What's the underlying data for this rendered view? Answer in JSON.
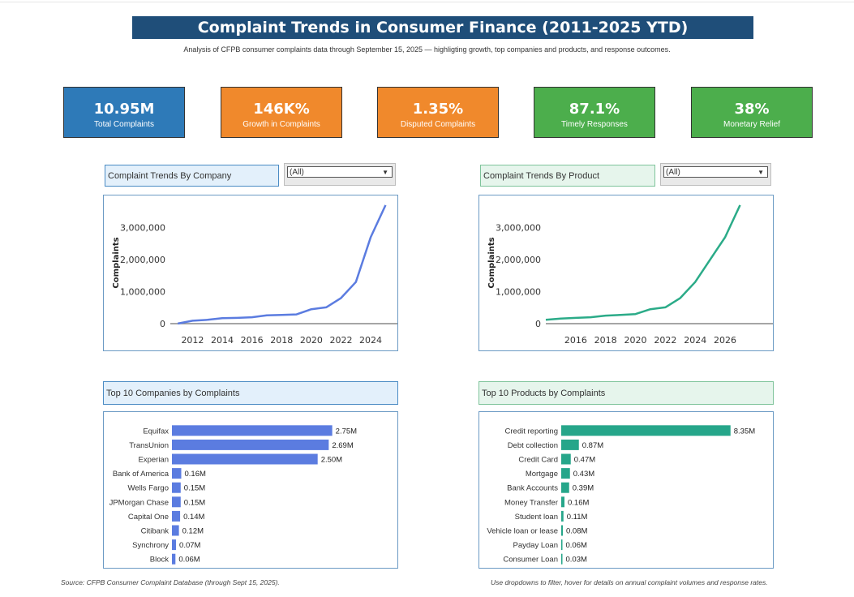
{
  "header": {
    "title": "Complaint Trends in Consumer Finance (2011-2025 YTD)",
    "subtitle": "Analysis of CFPB consumer complaints data through September 15, 2025 — highligting growth, top companies and products, and response outcomes."
  },
  "kpis": [
    {
      "value": "10.95M",
      "label": "Total Complaints",
      "color": "#2e7ab8"
    },
    {
      "value": "146K%",
      "label": "Growth in Complaints",
      "color": "#f0892c"
    },
    {
      "value": "1.35%",
      "label": "Disputed Complaints",
      "color": "#f0892c"
    },
    {
      "value": "87.1%",
      "label": "Timely Responses",
      "color": "#4cae4c"
    },
    {
      "value": "38%",
      "label": "Monetary Relief",
      "color": "#4cae4c"
    }
  ],
  "company_section": {
    "title": "Complaint Trends By Company",
    "filter_value": "(All)"
  },
  "product_section": {
    "title": "Complaint Trends By Product",
    "filter_value": "(All)"
  },
  "top_companies_title": "Top 10 Companies by Complaints",
  "top_products_title": "Top 10 Products by Complaints",
  "footer": {
    "source": "Source: CFPB Consumer Complaint Database (through Sept 15, 2025).",
    "hint": "Use dropdowns to filter, hover for details on annual complaint volumes and response rates."
  },
  "chart_data": [
    {
      "id": "company-trend",
      "type": "line",
      "ylabel": "Complaints",
      "xlabel": "",
      "color": "#5b7ce0",
      "x": [
        2011,
        2012,
        2013,
        2014,
        2015,
        2016,
        2017,
        2018,
        2019,
        2020,
        2021,
        2022,
        2023,
        2024,
        2025
      ],
      "values": [
        2000,
        90000,
        120000,
        170000,
        180000,
        200000,
        260000,
        270000,
        290000,
        450000,
        510000,
        800000,
        1300000,
        2700000,
        3700000
      ],
      "xticks": [
        2012,
        2014,
        2016,
        2018,
        2020,
        2022,
        2024
      ],
      "yticks": [
        0,
        1000000,
        2000000,
        3000000
      ],
      "ytick_labels": [
        "0",
        "1,000,000",
        "2,000,000",
        "3,000,000"
      ],
      "xlim": [
        2010.5,
        2025.8
      ],
      "ylim": [
        0,
        3800000
      ]
    },
    {
      "id": "product-trend",
      "type": "line",
      "ylabel": "Complaints",
      "xlabel": "",
      "color": "#2bab88",
      "x": [
        2014,
        2015,
        2016,
        2017,
        2018,
        2019,
        2020,
        2021,
        2022,
        2023,
        2024,
        2025,
        2026,
        2027
      ],
      "values": [
        120000,
        160000,
        180000,
        200000,
        250000,
        270000,
        300000,
        450000,
        510000,
        800000,
        1300000,
        2000000,
        2700000,
        3700000
      ],
      "xticks": [
        2016,
        2018,
        2020,
        2022,
        2024,
        2026
      ],
      "yticks": [
        0,
        1000000,
        2000000,
        3000000
      ],
      "ytick_labels": [
        "0",
        "1,000,000",
        "2,000,000",
        "3,000,000"
      ],
      "xlim": [
        2014,
        2029.2
      ],
      "ylim": [
        0,
        3800000
      ]
    },
    {
      "id": "top-companies",
      "type": "bar",
      "orientation": "horizontal",
      "color": "#5b7ce0",
      "categories": [
        "Equifax",
        "TransUnion",
        "Experian",
        "Bank of America",
        "Wells Fargo",
        "JPMorgan Chase",
        "Capital One",
        "Citibank",
        "Synchrony",
        "Block"
      ],
      "values": [
        2.75,
        2.69,
        2.5,
        0.16,
        0.15,
        0.15,
        0.14,
        0.12,
        0.07,
        0.06
      ],
      "value_labels": [
        "2.75M",
        "2.69M",
        "2.50M",
        "0.16M",
        "0.15M",
        "0.15M",
        "0.14M",
        "0.12M",
        "0.07M",
        "0.06M"
      ],
      "xlim": [
        0,
        3.2
      ]
    },
    {
      "id": "top-products",
      "type": "bar",
      "orientation": "horizontal",
      "color": "#26a68a",
      "categories": [
        "Credit reporting",
        "Debt collection",
        "Credit Card",
        "Mortgage",
        "Bank Accounts",
        "Money Transfer",
        "Student loan",
        "Vehicle loan or lease",
        "Payday Loan",
        "Consumer Loan"
      ],
      "values": [
        8.35,
        0.87,
        0.47,
        0.43,
        0.39,
        0.16,
        0.11,
        0.08,
        0.06,
        0.03
      ],
      "value_labels": [
        "8.35M",
        "0.87M",
        "0.47M",
        "0.43M",
        "0.39M",
        "0.16M",
        "0.11M",
        "0.08M",
        "0.06M",
        "0.03M"
      ],
      "xlim": [
        0,
        8.6
      ]
    }
  ]
}
